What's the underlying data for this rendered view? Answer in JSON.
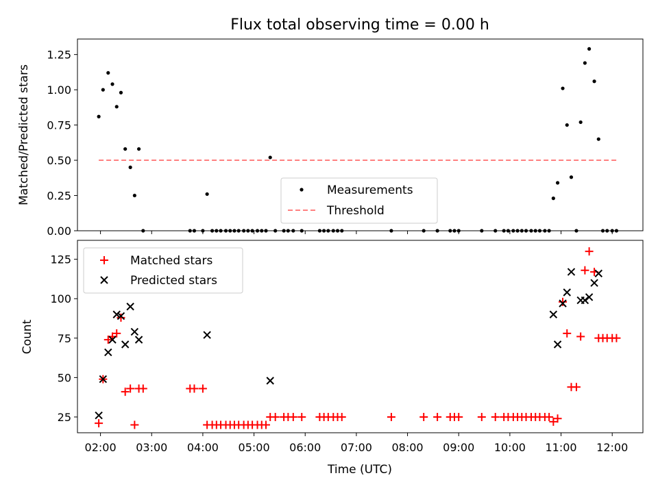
{
  "chart_data": [
    {
      "type": "scatter",
      "title": "Flux total observing time = 0.00 h",
      "xlabel": "",
      "ylabel": "Matched/Predicted stars",
      "xlim": [
        "01:33",
        "12:36"
      ],
      "ylim": [
        0,
        1.36
      ],
      "yticks": [
        0.0,
        0.25,
        0.5,
        0.75,
        1.0,
        1.25
      ],
      "ytick_labels": [
        "0.00",
        "0.25",
        "0.50",
        "0.75",
        "1.00",
        "1.25"
      ],
      "legend": {
        "placement": "lower center"
      },
      "series": [
        {
          "name": "Measurements",
          "marker": "dot",
          "color": "#000000",
          "points": [
            [
              "01:58",
              0.81
            ],
            [
              "02:03",
              1.0
            ],
            [
              "02:09",
              1.12
            ],
            [
              "02:14",
              1.04
            ],
            [
              "02:19",
              0.88
            ],
            [
              "02:24",
              0.98
            ],
            [
              "02:29",
              0.58
            ],
            [
              "02:35",
              0.45
            ],
            [
              "02:40",
              0.25
            ],
            [
              "02:45",
              0.58
            ],
            [
              "02:50",
              0.0
            ],
            [
              "03:45",
              0.0
            ],
            [
              "03:50",
              0.0
            ],
            [
              "04:00",
              0.0
            ],
            [
              "04:05",
              0.26
            ],
            [
              "04:11",
              0.0
            ],
            [
              "04:16",
              0.0
            ],
            [
              "04:21",
              0.0
            ],
            [
              "04:27",
              0.0
            ],
            [
              "04:32",
              0.0
            ],
            [
              "04:37",
              0.0
            ],
            [
              "04:42",
              0.0
            ],
            [
              "04:48",
              0.0
            ],
            [
              "04:53",
              0.0
            ],
            [
              "04:58",
              0.0
            ],
            [
              "05:04",
              0.0
            ],
            [
              "05:09",
              0.0
            ],
            [
              "05:14",
              0.0
            ],
            [
              "05:19",
              0.52
            ],
            [
              "05:25",
              0.0
            ],
            [
              "05:35",
              0.0
            ],
            [
              "05:40",
              0.0
            ],
            [
              "05:46",
              0.0
            ],
            [
              "05:56",
              0.0
            ],
            [
              "06:17",
              0.0
            ],
            [
              "06:22",
              0.0
            ],
            [
              "06:27",
              0.0
            ],
            [
              "06:33",
              0.0
            ],
            [
              "06:38",
              0.0
            ],
            [
              "06:43",
              0.0
            ],
            [
              "07:41",
              0.0
            ],
            [
              "08:19",
              0.0
            ],
            [
              "08:35",
              0.0
            ],
            [
              "08:50",
              0.0
            ],
            [
              "08:55",
              0.0
            ],
            [
              "09:00",
              0.0
            ],
            [
              "09:27",
              0.0
            ],
            [
              "09:43",
              0.0
            ],
            [
              "09:53",
              0.0
            ],
            [
              "09:58",
              0.0
            ],
            [
              "10:04",
              0.0
            ],
            [
              "10:09",
              0.0
            ],
            [
              "10:14",
              0.0
            ],
            [
              "10:19",
              0.0
            ],
            [
              "10:25",
              0.0
            ],
            [
              "10:30",
              0.0
            ],
            [
              "10:35",
              0.0
            ],
            [
              "10:41",
              0.0
            ],
            [
              "10:46",
              0.0
            ],
            [
              "10:51",
              0.23
            ],
            [
              "10:56",
              0.34
            ],
            [
              "11:02",
              1.01
            ],
            [
              "11:07",
              0.75
            ],
            [
              "11:12",
              0.38
            ],
            [
              "11:18",
              0.0
            ],
            [
              "11:23",
              0.77
            ],
            [
              "11:28",
              1.19
            ],
            [
              "11:33",
              1.29
            ],
            [
              "11:39",
              1.06
            ],
            [
              "11:44",
              0.65
            ],
            [
              "11:49",
              0.0
            ],
            [
              "11:54",
              0.0
            ],
            [
              "12:00",
              0.0
            ],
            [
              "12:05",
              0.0
            ]
          ]
        },
        {
          "name": "Threshold",
          "marker": "dashed-line",
          "color": "#ff7f7f",
          "points": [
            [
              "01:58",
              0.5
            ],
            [
              "12:05",
              0.5
            ]
          ]
        }
      ]
    },
    {
      "type": "scatter",
      "title": "",
      "xlabel": "Time (UTC)",
      "ylabel": "Count",
      "xlim": [
        "01:33",
        "12:36"
      ],
      "ylim": [
        15,
        137
      ],
      "yticks": [
        25,
        50,
        75,
        100,
        125
      ],
      "ytick_labels": [
        "25",
        "50",
        "75",
        "100",
        "125"
      ],
      "xtick_labels": [
        "02:00",
        "03:00",
        "04:00",
        "05:00",
        "06:00",
        "07:00",
        "08:00",
        "09:00",
        "10:00",
        "11:00",
        "12:00"
      ],
      "legend": {
        "placement": "top-left"
      },
      "series": [
        {
          "name": "Matched stars",
          "marker": "plus",
          "color": "#ff0000",
          "points": [
            [
              "01:58",
              21
            ],
            [
              "02:03",
              49
            ],
            [
              "02:09",
              74
            ],
            [
              "02:14",
              76
            ],
            [
              "02:19",
              78
            ],
            [
              "02:24",
              88
            ],
            [
              "02:29",
              41
            ],
            [
              "02:35",
              43
            ],
            [
              "02:40",
              20
            ],
            [
              "02:45",
              43
            ],
            [
              "02:50",
              43
            ],
            [
              "03:45",
              43
            ],
            [
              "03:50",
              43
            ],
            [
              "04:00",
              43
            ],
            [
              "04:05",
              20
            ],
            [
              "04:11",
              20
            ],
            [
              "04:16",
              20
            ],
            [
              "04:21",
              20
            ],
            [
              "04:27",
              20
            ],
            [
              "04:32",
              20
            ],
            [
              "04:37",
              20
            ],
            [
              "04:42",
              20
            ],
            [
              "04:48",
              20
            ],
            [
              "04:53",
              20
            ],
            [
              "04:58",
              20
            ],
            [
              "05:04",
              20
            ],
            [
              "05:09",
              20
            ],
            [
              "05:14",
              20
            ],
            [
              "05:19",
              25
            ],
            [
              "05:25",
              25
            ],
            [
              "05:35",
              25
            ],
            [
              "05:40",
              25
            ],
            [
              "05:46",
              25
            ],
            [
              "05:56",
              25
            ],
            [
              "06:17",
              25
            ],
            [
              "06:22",
              25
            ],
            [
              "06:27",
              25
            ],
            [
              "06:33",
              25
            ],
            [
              "06:38",
              25
            ],
            [
              "06:43",
              25
            ],
            [
              "07:41",
              25
            ],
            [
              "08:19",
              25
            ],
            [
              "08:35",
              25
            ],
            [
              "08:50",
              25
            ],
            [
              "08:55",
              25
            ],
            [
              "09:00",
              25
            ],
            [
              "09:27",
              25
            ],
            [
              "09:43",
              25
            ],
            [
              "09:53",
              25
            ],
            [
              "09:58",
              25
            ],
            [
              "10:04",
              25
            ],
            [
              "10:09",
              25
            ],
            [
              "10:14",
              25
            ],
            [
              "10:19",
              25
            ],
            [
              "10:25",
              25
            ],
            [
              "10:30",
              25
            ],
            [
              "10:35",
              25
            ],
            [
              "10:41",
              25
            ],
            [
              "10:46",
              25
            ],
            [
              "10:51",
              22
            ],
            [
              "10:56",
              24
            ],
            [
              "11:02",
              98
            ],
            [
              "11:07",
              78
            ],
            [
              "11:12",
              44
            ],
            [
              "11:18",
              44
            ],
            [
              "11:23",
              76
            ],
            [
              "11:28",
              118
            ],
            [
              "11:33",
              130
            ],
            [
              "11:39",
              117
            ],
            [
              "11:44",
              75
            ],
            [
              "11:49",
              75
            ],
            [
              "11:54",
              75
            ],
            [
              "12:00",
              75
            ],
            [
              "12:05",
              75
            ]
          ]
        },
        {
          "name": "Predicted stars",
          "marker": "x",
          "color": "#000000",
          "points": [
            [
              "01:58",
              26
            ],
            [
              "02:03",
              49
            ],
            [
              "02:09",
              66
            ],
            [
              "02:14",
              74
            ],
            [
              "02:19",
              90
            ],
            [
              "02:24",
              89
            ],
            [
              "02:29",
              71
            ],
            [
              "02:35",
              95
            ],
            [
              "02:40",
              79
            ],
            [
              "02:45",
              74
            ],
            [
              "04:05",
              77
            ],
            [
              "05:19",
              48
            ],
            [
              "10:51",
              90
            ],
            [
              "10:56",
              71
            ],
            [
              "11:02",
              97
            ],
            [
              "11:07",
              104
            ],
            [
              "11:12",
              117
            ],
            [
              "11:23",
              99
            ],
            [
              "11:28",
              99
            ],
            [
              "11:33",
              101
            ],
            [
              "11:39",
              110
            ],
            [
              "11:44",
              116
            ]
          ]
        }
      ]
    }
  ]
}
